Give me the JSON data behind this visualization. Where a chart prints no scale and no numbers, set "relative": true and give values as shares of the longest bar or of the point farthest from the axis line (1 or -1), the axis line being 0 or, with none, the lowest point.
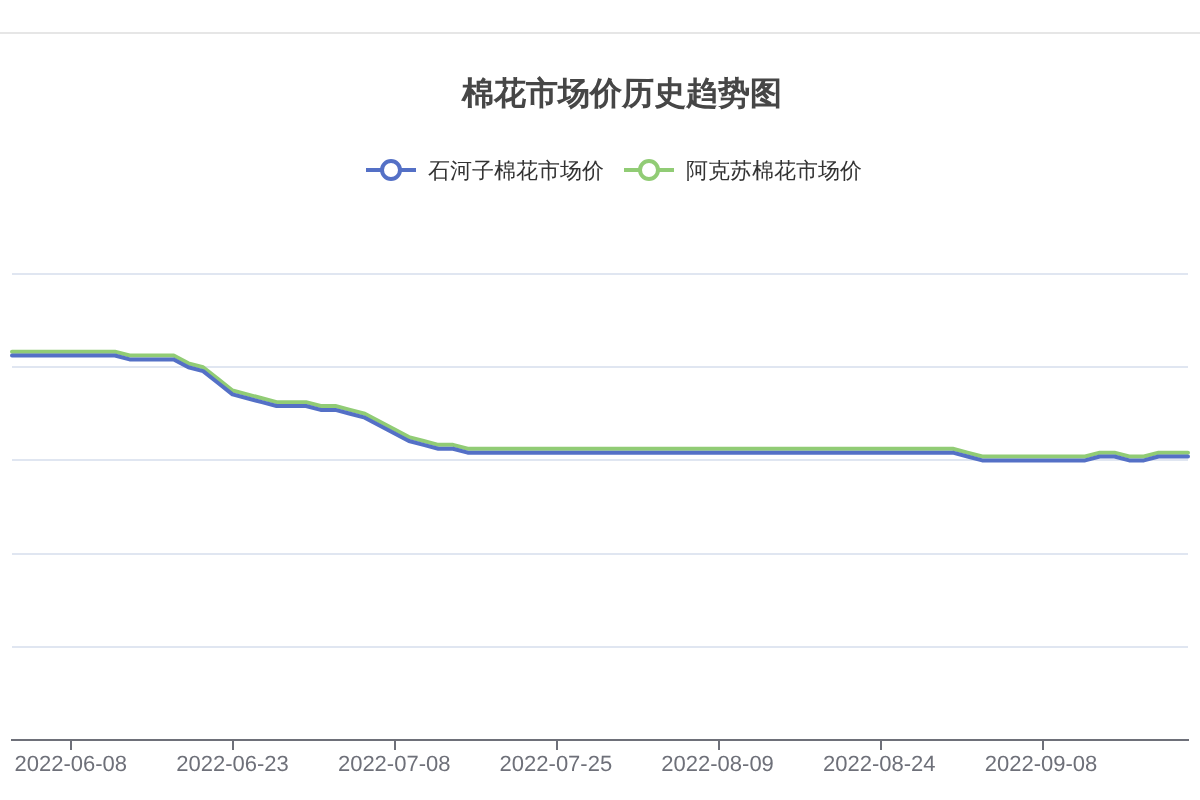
{
  "chart_data": {
    "type": "line",
    "title": "棉花市场价历史趋势图",
    "relative": true,
    "grid": "y",
    "legend": "top",
    "tick_labels": "x",
    "marker": "none",
    "categories": [
      null,
      null,
      null,
      null,
      "2022-06-08",
      null,
      null,
      null,
      null,
      null,
      null,
      null,
      null,
      null,
      null,
      "2022-06-23",
      null,
      null,
      null,
      null,
      null,
      null,
      null,
      null,
      null,
      null,
      "2022-07-08",
      null,
      null,
      null,
      null,
      null,
      null,
      null,
      null,
      null,
      null,
      "2022-07-25",
      null,
      null,
      null,
      null,
      null,
      null,
      null,
      null,
      null,
      null,
      "2022-08-09",
      null,
      null,
      null,
      null,
      null,
      null,
      null,
      null,
      null,
      null,
      "2022-08-24",
      null,
      null,
      null,
      null,
      null,
      null,
      null,
      null,
      null,
      null,
      "2022-09-08",
      null,
      null,
      null,
      null,
      null,
      null,
      null,
      null,
      null,
      null
    ],
    "series": [
      {
        "name": "石河子棉花市场价",
        "color": "#5470c6",
        "values": [
          0.99,
          0.99,
          0.99,
          0.99,
          0.99,
          0.99,
          0.99,
          0.99,
          0.98,
          0.98,
          0.98,
          0.98,
          0.96,
          0.95,
          0.92,
          0.89,
          0.88,
          0.87,
          0.86,
          0.86,
          0.86,
          0.85,
          0.85,
          0.84,
          0.83,
          0.81,
          0.79,
          0.77,
          0.76,
          0.75,
          0.75,
          0.74,
          0.74,
          0.74,
          0.74,
          0.74,
          0.74,
          0.74,
          0.74,
          0.74,
          0.74,
          0.74,
          0.74,
          0.74,
          0.74,
          0.74,
          0.74,
          0.74,
          0.74,
          0.74,
          0.74,
          0.74,
          0.74,
          0.74,
          0.74,
          0.74,
          0.74,
          0.74,
          0.74,
          0.74,
          0.74,
          0.74,
          0.74,
          0.74,
          0.74,
          0.73,
          0.72,
          0.72,
          0.72,
          0.72,
          0.72,
          0.72,
          0.72,
          0.72,
          0.73,
          0.73,
          0.72,
          0.72,
          0.73,
          0.73,
          0.73
        ]
      },
      {
        "name": "阿克苏棉花市场价",
        "color": "#91cc75",
        "values": [
          1,
          1,
          1,
          1,
          1,
          1,
          1,
          1,
          0.99,
          0.99,
          0.99,
          0.99,
          0.97,
          0.96,
          0.93,
          0.9,
          0.89,
          0.88,
          0.87,
          0.87,
          0.87,
          0.86,
          0.86,
          0.85,
          0.84,
          0.82,
          0.8,
          0.78,
          0.77,
          0.76,
          0.76,
          0.75,
          0.75,
          0.75,
          0.75,
          0.75,
          0.75,
          0.75,
          0.75,
          0.75,
          0.75,
          0.75,
          0.75,
          0.75,
          0.75,
          0.75,
          0.75,
          0.75,
          0.75,
          0.75,
          0.75,
          0.75,
          0.75,
          0.75,
          0.75,
          0.75,
          0.75,
          0.75,
          0.75,
          0.75,
          0.75,
          0.75,
          0.75,
          0.75,
          0.75,
          0.74,
          0.73,
          0.73,
          0.73,
          0.73,
          0.73,
          0.73,
          0.73,
          0.73,
          0.74,
          0.74,
          0.73,
          0.73,
          0.74,
          0.74,
          0.74
        ]
      }
    ]
  }
}
